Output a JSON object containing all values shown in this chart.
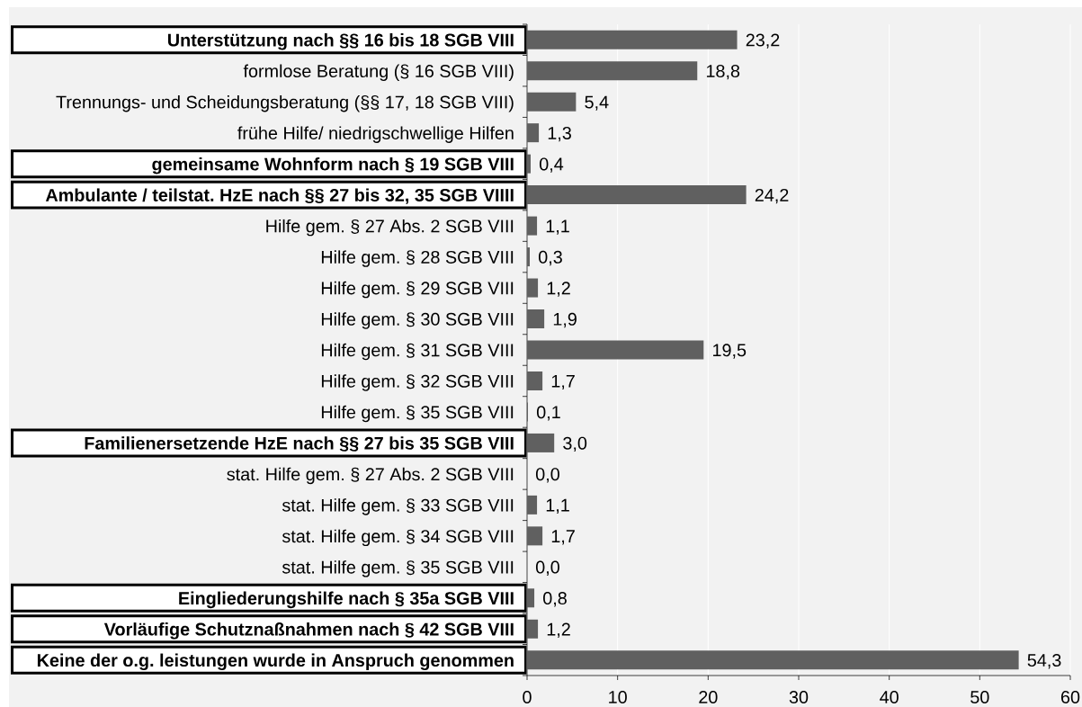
{
  "chart_data": {
    "type": "bar",
    "orientation": "horizontal",
    "categories": [
      "**Unterstützung nach §§ 16 bis 18 SGB VIII**",
      "formlose Beratung (§ 16 SGB VIII)",
      "Trennungs- und Scheidungsberatung (§§ 17, 18 SGB VIII)",
      "frühe Hilfe/ niedrigschwellige Hilfen",
      "**gemeinsame Wohnform nach § 19 SGB VIII**",
      "**Ambulante / teilstat. HzE nach §§ 27 bis 32, 35 SGB VIIII**",
      "Hilfe gem. § 27 Abs. 2 SGB VIII",
      "Hilfe gem. § 28 SGB VIII",
      "Hilfe gem. § 29 SGB VIII",
      "Hilfe gem. § 30 SGB VIII",
      "Hilfe gem. § 31 SGB VIII",
      "Hilfe gem. § 32 SGB VIII",
      "Hilfe gem. § 35 SGB VIII",
      "**Familienersetzende HzE nach §§ 27 bis 35 SGB VIII**",
      "stat. Hilfe gem. § 27 Abs. 2 SGB VIII",
      "stat. Hilfe gem. § 33 SGB VIII",
      "stat. Hilfe gem. § 34 SGB VIII",
      "stat. Hilfe gem. § 35 SGB VIII",
      "**Eingliederungshilfe nach § 35a SGB VIII**",
      "**Vorläufige Schutznaßnahmen nach § 42 SGB VIII**",
      "**Keine der o.g. leistungen wurde in Anspruch genommen**"
    ],
    "values": [
      23.2,
      18.8,
      5.4,
      1.3,
      0.4,
      24.2,
      1.1,
      0.3,
      1.2,
      1.9,
      19.5,
      1.7,
      0.1,
      3.0,
      0.0,
      1.1,
      1.7,
      0.0,
      0.8,
      1.2,
      54.3
    ],
    "value_labels": [
      "23,2",
      "18,8",
      "5,4",
      "1,3",
      "0,4",
      "24,2",
      "1,1",
      "0,3",
      "1,2",
      "1,9",
      "19,5",
      "1,7",
      "0,1",
      "3,0",
      "0,0",
      "1,1",
      "1,7",
      "0,0",
      "0,8",
      "1,2",
      "54,3"
    ],
    "color": "#606060",
    "xlim": [
      0,
      60
    ],
    "xticks": [
      0,
      10,
      20,
      30,
      40,
      50,
      60
    ],
    "grid": "x"
  }
}
